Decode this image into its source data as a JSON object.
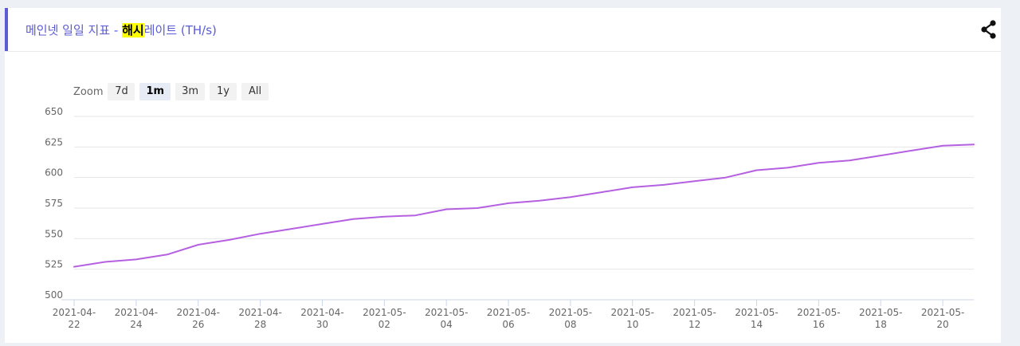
{
  "header": {
    "title_prefix": "메인넷 일일 지표 - ",
    "title_highlight": "해시",
    "title_suffix": "레이트 (TH/s)",
    "share_icon": "share-icon"
  },
  "zoom": {
    "label": "Zoom",
    "buttons": [
      {
        "label": "7d",
        "active": false
      },
      {
        "label": "1m",
        "active": true
      },
      {
        "label": "3m",
        "active": false
      },
      {
        "label": "1y",
        "active": false
      },
      {
        "label": "All",
        "active": false
      }
    ]
  },
  "colors": {
    "accent": "#5b5bd6",
    "line": "#b560e0",
    "highlight": "#ffff00"
  },
  "chart_data": {
    "type": "line",
    "title": "메인넷 일일 지표 - 해시레이트 (TH/s)",
    "xlabel": "",
    "ylabel": "",
    "ylim": [
      500,
      650
    ],
    "yticks": [
      500,
      525,
      550,
      575,
      600,
      625,
      650
    ],
    "xlim": [
      "2021-04-22",
      "2021-05-21"
    ],
    "xticks": [
      {
        "date": "2021-04-22",
        "line1": "2021-04-",
        "line2": "22"
      },
      {
        "date": "2021-04-24",
        "line1": "2021-04-",
        "line2": "24"
      },
      {
        "date": "2021-04-26",
        "line1": "2021-04-",
        "line2": "26"
      },
      {
        "date": "2021-04-28",
        "line1": "2021-04-",
        "line2": "28"
      },
      {
        "date": "2021-04-30",
        "line1": "2021-04-",
        "line2": "30"
      },
      {
        "date": "2021-05-02",
        "line1": "2021-05-",
        "line2": "02"
      },
      {
        "date": "2021-05-04",
        "line1": "2021-05-",
        "line2": "04"
      },
      {
        "date": "2021-05-06",
        "line1": "2021-05-",
        "line2": "06"
      },
      {
        "date": "2021-05-08",
        "line1": "2021-05-",
        "line2": "08"
      },
      {
        "date": "2021-05-10",
        "line1": "2021-05-",
        "line2": "10"
      },
      {
        "date": "2021-05-12",
        "line1": "2021-05-",
        "line2": "12"
      },
      {
        "date": "2021-05-14",
        "line1": "2021-05-",
        "line2": "14"
      },
      {
        "date": "2021-05-16",
        "line1": "2021-05-",
        "line2": "16"
      },
      {
        "date": "2021-05-18",
        "line1": "2021-05-",
        "line2": "18"
      },
      {
        "date": "2021-05-20",
        "line1": "2021-05-",
        "line2": "20"
      }
    ],
    "grid": true,
    "legend": "none",
    "series": [
      {
        "x": [
          "2021-04-22",
          "2021-04-23",
          "2021-04-24",
          "2021-04-25",
          "2021-04-26",
          "2021-04-27",
          "2021-04-28",
          "2021-04-29",
          "2021-04-30",
          "2021-05-01",
          "2021-05-02",
          "2021-05-03",
          "2021-05-04",
          "2021-05-05",
          "2021-05-06",
          "2021-05-07",
          "2021-05-08",
          "2021-05-09",
          "2021-05-10",
          "2021-05-11",
          "2021-05-12",
          "2021-05-13",
          "2021-05-14",
          "2021-05-15",
          "2021-05-16",
          "2021-05-17",
          "2021-05-18",
          "2021-05-19",
          "2021-05-20",
          "2021-05-21"
        ],
        "values": [
          527,
          531,
          533,
          537,
          545,
          549,
          554,
          558,
          562,
          566,
          568,
          569,
          574,
          575,
          579,
          581,
          584,
          588,
          592,
          594,
          597,
          600,
          606,
          608,
          612,
          614,
          618,
          622,
          626,
          627
        ]
      }
    ]
  }
}
